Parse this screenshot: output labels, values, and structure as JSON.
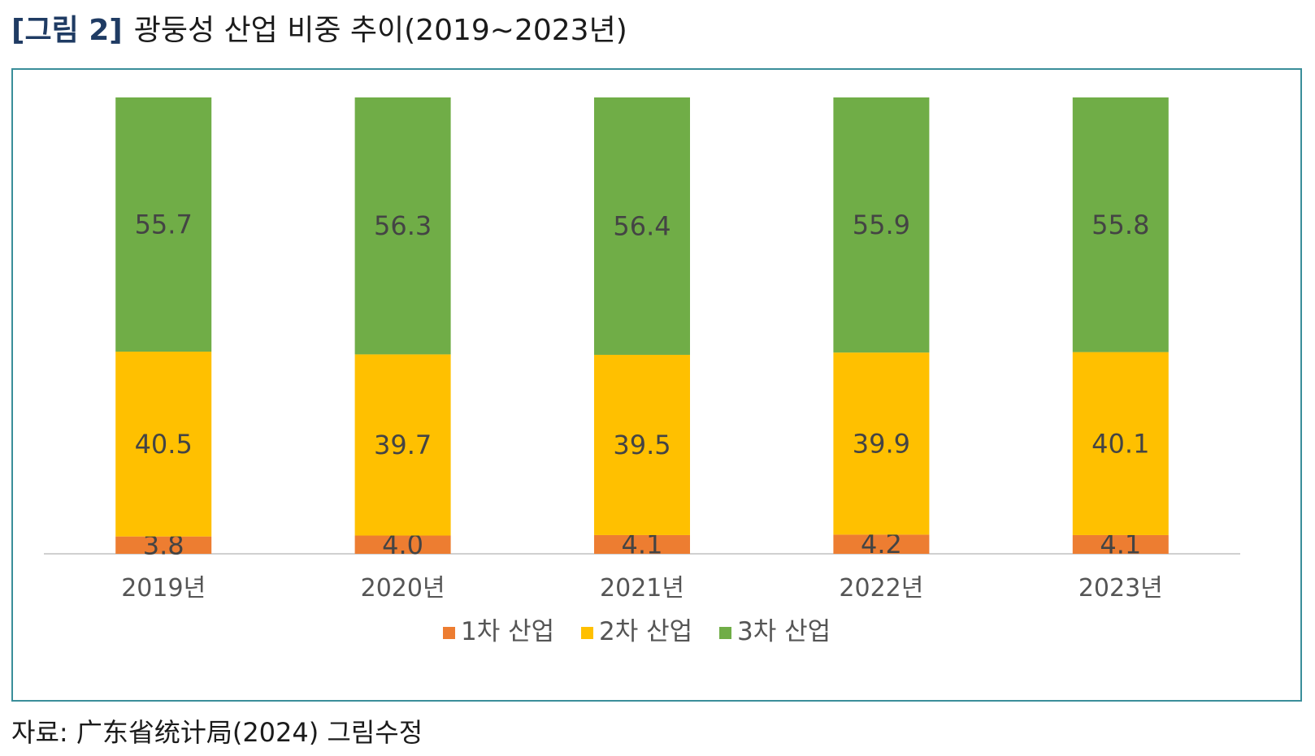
{
  "figure": {
    "label": "[그림 2]",
    "title": "광둥성 산업 비중 추이(2019~2023년)"
  },
  "source": "자료: 广东省统计局(2024) 그림수정",
  "chart_data": {
    "type": "bar",
    "stacked": true,
    "categories": [
      "2019년",
      "2020년",
      "2021년",
      "2022년",
      "2023년"
    ],
    "series": [
      {
        "name": "1차 산업",
        "color": "#ed7d31",
        "values": [
          3.8,
          4.0,
          4.1,
          4.2,
          4.1
        ],
        "labels": [
          "3.8",
          "4.0",
          "4.1",
          "4.2",
          "4.1"
        ]
      },
      {
        "name": "2차 산업",
        "color": "#ffc000",
        "values": [
          40.5,
          39.7,
          39.5,
          39.9,
          40.1
        ],
        "labels": [
          "40.5",
          "39.7",
          "39.5",
          "39.9",
          "40.1"
        ]
      },
      {
        "name": "3차 산업",
        "color": "#70ad47",
        "values": [
          55.7,
          56.3,
          56.4,
          55.9,
          55.8
        ],
        "labels": [
          "55.7",
          "56.3",
          "56.4",
          "55.9",
          "55.8"
        ]
      }
    ],
    "ylim": [
      0,
      100
    ],
    "grid": false,
    "legend": "bottom",
    "title": "",
    "xlabel": "",
    "ylabel": ""
  }
}
